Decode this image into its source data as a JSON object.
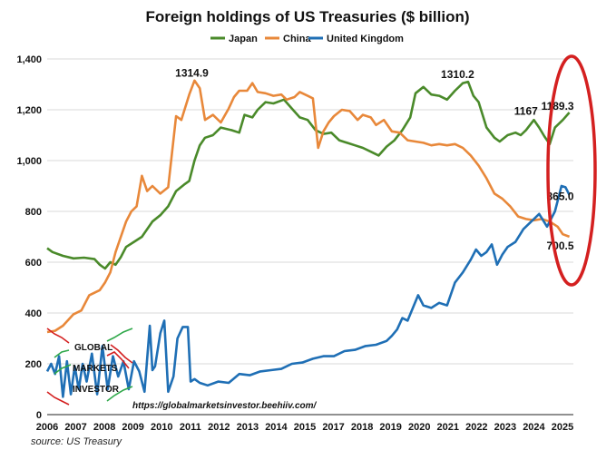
{
  "chart_data": {
    "type": "line",
    "title": "Foreign holdings of US Treasuries ($ billion)",
    "source": "source: US Treasury",
    "watermark_url": "https://globalmarketsinvestor.beehiiv.com/",
    "logo_text": [
      "GLOBAL",
      "MARKETS",
      "INVESTOR"
    ],
    "ylim": [
      0,
      1400
    ],
    "yticks": [
      0,
      200,
      400,
      600,
      800,
      1000,
      1200,
      1400
    ],
    "ytick_labels": [
      "0",
      "200",
      "400",
      "600",
      "800",
      "1,000",
      "1,200",
      "1,400"
    ],
    "xtick_labels": [
      "2006",
      "2007",
      "2008",
      "2009",
      "2010",
      "2011",
      "2012",
      "2013",
      "2014",
      "2015",
      "2017",
      "2018",
      "2019",
      "2020",
      "2021",
      "2022",
      "2023",
      "2024",
      "2025"
    ],
    "grid": true,
    "legend_position": "top",
    "series": [
      {
        "name": "Japan",
        "color": "#4a8a2a",
        "points": [
          [
            2006.0,
            655
          ],
          [
            2006.2,
            640
          ],
          [
            2006.6,
            625
          ],
          [
            2007.0,
            615
          ],
          [
            2007.4,
            618
          ],
          [
            2007.8,
            612
          ],
          [
            2008.0,
            590
          ],
          [
            2008.2,
            575
          ],
          [
            2008.4,
            600
          ],
          [
            2008.6,
            590
          ],
          [
            2008.8,
            620
          ],
          [
            2009.0,
            660
          ],
          [
            2009.3,
            680
          ],
          [
            2009.6,
            700
          ],
          [
            2010.0,
            760
          ],
          [
            2010.3,
            785
          ],
          [
            2010.6,
            820
          ],
          [
            2010.9,
            880
          ],
          [
            2011.2,
            905
          ],
          [
            2011.4,
            920
          ],
          [
            2011.6,
            1000
          ],
          [
            2011.8,
            1060
          ],
          [
            2012.0,
            1090
          ],
          [
            2012.3,
            1100
          ],
          [
            2012.6,
            1130
          ],
          [
            2013.0,
            1120
          ],
          [
            2013.3,
            1110
          ],
          [
            2013.5,
            1180
          ],
          [
            2013.8,
            1170
          ],
          [
            2014.0,
            1200
          ],
          [
            2014.3,
            1230
          ],
          [
            2014.6,
            1225
          ],
          [
            2015.0,
            1240
          ],
          [
            2015.3,
            1205
          ],
          [
            2015.6,
            1170
          ],
          [
            2015.9,
            1160
          ],
          [
            2016.2,
            1120
          ],
          [
            2016.5,
            1105
          ],
          [
            2016.8,
            1110
          ],
          [
            2017.1,
            1080
          ],
          [
            2017.4,
            1070
          ],
          [
            2017.7,
            1060
          ],
          [
            2018.0,
            1050
          ],
          [
            2018.3,
            1035
          ],
          [
            2018.6,
            1020
          ],
          [
            2018.9,
            1055
          ],
          [
            2019.2,
            1080
          ],
          [
            2019.5,
            1120
          ],
          [
            2019.8,
            1170
          ],
          [
            2020.0,
            1265
          ],
          [
            2020.3,
            1290
          ],
          [
            2020.6,
            1260
          ],
          [
            2020.9,
            1255
          ],
          [
            2021.2,
            1240
          ],
          [
            2021.5,
            1275
          ],
          [
            2021.8,
            1305
          ],
          [
            2022.0,
            1310
          ],
          [
            2022.2,
            1255
          ],
          [
            2022.4,
            1230
          ],
          [
            2022.7,
            1130
          ],
          [
            2023.0,
            1090
          ],
          [
            2023.2,
            1075
          ],
          [
            2023.5,
            1100
          ],
          [
            2023.8,
            1110
          ],
          [
            2024.0,
            1100
          ],
          [
            2024.2,
            1120
          ],
          [
            2024.5,
            1160
          ],
          [
            2024.7,
            1130
          ],
          [
            2024.9,
            1095
          ],
          [
            2025.1,
            1065
          ],
          [
            2025.3,
            1130
          ],
          [
            2025.6,
            1160
          ],
          [
            2025.85,
            1189.3
          ]
        ]
      },
      {
        "name": "China",
        "color": "#e8883a",
        "points": [
          [
            2006.0,
            325
          ],
          [
            2006.3,
            330
          ],
          [
            2006.6,
            350
          ],
          [
            2007.0,
            395
          ],
          [
            2007.3,
            410
          ],
          [
            2007.6,
            470
          ],
          [
            2008.0,
            490
          ],
          [
            2008.2,
            520
          ],
          [
            2008.4,
            560
          ],
          [
            2008.6,
            640
          ],
          [
            2008.8,
            700
          ],
          [
            2009.0,
            760
          ],
          [
            2009.2,
            800
          ],
          [
            2009.4,
            820
          ],
          [
            2009.6,
            940
          ],
          [
            2009.8,
            880
          ],
          [
            2010.0,
            900
          ],
          [
            2010.3,
            870
          ],
          [
            2010.6,
            895
          ],
          [
            2010.9,
            1175
          ],
          [
            2011.1,
            1160
          ],
          [
            2011.4,
            1260
          ],
          [
            2011.6,
            1314.9
          ],
          [
            2011.8,
            1285
          ],
          [
            2012.0,
            1160
          ],
          [
            2012.3,
            1180
          ],
          [
            2012.6,
            1150
          ],
          [
            2012.9,
            1205
          ],
          [
            2013.1,
            1250
          ],
          [
            2013.3,
            1275
          ],
          [
            2013.6,
            1275
          ],
          [
            2013.8,
            1305
          ],
          [
            2014.0,
            1270
          ],
          [
            2014.3,
            1265
          ],
          [
            2014.6,
            1255
          ],
          [
            2014.9,
            1260
          ],
          [
            2015.1,
            1240
          ],
          [
            2015.4,
            1250
          ],
          [
            2015.6,
            1270
          ],
          [
            2015.9,
            1255
          ],
          [
            2016.1,
            1245
          ],
          [
            2016.3,
            1050
          ],
          [
            2016.5,
            1115
          ],
          [
            2016.7,
            1150
          ],
          [
            2016.9,
            1175
          ],
          [
            2017.2,
            1200
          ],
          [
            2017.5,
            1195
          ],
          [
            2017.8,
            1160
          ],
          [
            2018.0,
            1180
          ],
          [
            2018.3,
            1170
          ],
          [
            2018.5,
            1140
          ],
          [
            2018.8,
            1160
          ],
          [
            2019.1,
            1115
          ],
          [
            2019.4,
            1110
          ],
          [
            2019.7,
            1080
          ],
          [
            2020.0,
            1075
          ],
          [
            2020.3,
            1070
          ],
          [
            2020.6,
            1060
          ],
          [
            2020.9,
            1065
          ],
          [
            2021.2,
            1060
          ],
          [
            2021.5,
            1065
          ],
          [
            2021.8,
            1050
          ],
          [
            2022.1,
            1020
          ],
          [
            2022.4,
            980
          ],
          [
            2022.7,
            930
          ],
          [
            2023.0,
            870
          ],
          [
            2023.3,
            850
          ],
          [
            2023.6,
            820
          ],
          [
            2023.9,
            780
          ],
          [
            2024.2,
            770
          ],
          [
            2024.5,
            765
          ],
          [
            2024.8,
            770
          ],
          [
            2025.1,
            760
          ],
          [
            2025.4,
            740
          ],
          [
            2025.6,
            710
          ],
          [
            2025.85,
            700.5
          ]
        ]
      },
      {
        "name": "United Kingdom",
        "color": "#1f6fb5",
        "points": [
          [
            2006.0,
            170
          ],
          [
            2006.15,
            200
          ],
          [
            2006.3,
            160
          ],
          [
            2006.45,
            230
          ],
          [
            2006.6,
            70
          ],
          [
            2006.75,
            210
          ],
          [
            2006.9,
            80
          ],
          [
            2007.05,
            190
          ],
          [
            2007.2,
            100
          ],
          [
            2007.35,
            200
          ],
          [
            2007.5,
            130
          ],
          [
            2007.7,
            240
          ],
          [
            2007.9,
            80
          ],
          [
            2008.1,
            270
          ],
          [
            2008.3,
            100
          ],
          [
            2008.5,
            230
          ],
          [
            2008.7,
            150
          ],
          [
            2008.9,
            210
          ],
          [
            2009.1,
            100
          ],
          [
            2009.3,
            210
          ],
          [
            2009.5,
            170
          ],
          [
            2009.7,
            90
          ],
          [
            2009.9,
            350
          ],
          [
            2010.0,
            175
          ],
          [
            2010.1,
            190
          ],
          [
            2010.3,
            320
          ],
          [
            2010.45,
            370
          ],
          [
            2010.6,
            90
          ],
          [
            2010.8,
            150
          ],
          [
            2010.95,
            300
          ],
          [
            2011.15,
            345
          ],
          [
            2011.35,
            345
          ],
          [
            2011.45,
            130
          ],
          [
            2011.6,
            140
          ],
          [
            2011.8,
            125
          ],
          [
            2012.1,
            115
          ],
          [
            2012.5,
            130
          ],
          [
            2012.9,
            125
          ],
          [
            2013.3,
            160
          ],
          [
            2013.7,
            155
          ],
          [
            2014.1,
            170
          ],
          [
            2014.5,
            175
          ],
          [
            2014.9,
            180
          ],
          [
            2015.3,
            200
          ],
          [
            2015.7,
            205
          ],
          [
            2016.1,
            220
          ],
          [
            2016.5,
            230
          ],
          [
            2016.9,
            230
          ],
          [
            2017.3,
            250
          ],
          [
            2017.7,
            255
          ],
          [
            2018.1,
            270
          ],
          [
            2018.5,
            275
          ],
          [
            2018.9,
            290
          ],
          [
            2019.1,
            310
          ],
          [
            2019.3,
            335
          ],
          [
            2019.5,
            380
          ],
          [
            2019.7,
            370
          ],
          [
            2019.9,
            420
          ],
          [
            2020.1,
            470
          ],
          [
            2020.3,
            430
          ],
          [
            2020.6,
            420
          ],
          [
            2020.9,
            440
          ],
          [
            2021.2,
            430
          ],
          [
            2021.5,
            520
          ],
          [
            2021.8,
            560
          ],
          [
            2022.1,
            610
          ],
          [
            2022.3,
            650
          ],
          [
            2022.5,
            625
          ],
          [
            2022.7,
            640
          ],
          [
            2022.9,
            670
          ],
          [
            2023.1,
            590
          ],
          [
            2023.3,
            630
          ],
          [
            2023.5,
            660
          ],
          [
            2023.8,
            680
          ],
          [
            2024.1,
            730
          ],
          [
            2024.4,
            760
          ],
          [
            2024.7,
            790
          ],
          [
            2025.0,
            740
          ],
          [
            2025.3,
            800
          ],
          [
            2025.55,
            900
          ],
          [
            2025.7,
            895
          ],
          [
            2025.85,
            865.0
          ]
        ]
      }
    ],
    "annotations": [
      {
        "text": "1314.9",
        "x": 2011.5,
        "y": 1330
      },
      {
        "text": "1310.2",
        "x": 2021.6,
        "y": 1325
      },
      {
        "text": "1167",
        "x": 2024.2,
        "y": 1180
      },
      {
        "text": "1189.3",
        "x": 2025.4,
        "y": 1200
      },
      {
        "text": "865.0",
        "x": 2025.5,
        "y": 845
      },
      {
        "text": "700.5",
        "x": 2025.5,
        "y": 650
      }
    ]
  },
  "highlight_ellipse_color": "#d42020"
}
